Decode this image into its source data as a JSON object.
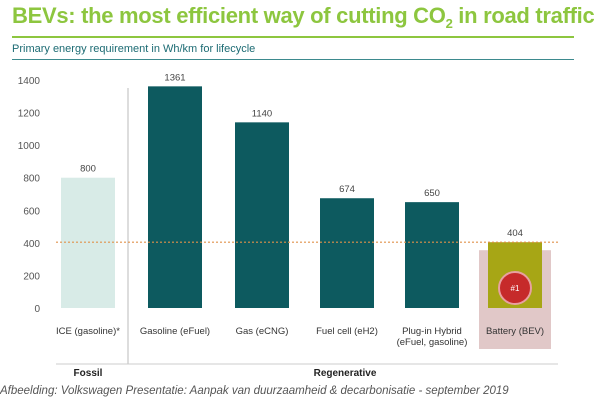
{
  "title": {
    "main": "BEVs: the most efficient way of cutting CO",
    "subscript": "2",
    "suffix": " in road traffic"
  },
  "subtitle": "Primary energy requirement in Wh/km for lifecycle",
  "caption": "Afbeelding: Volkswagen Presentatie: Aanpak van duurzaamheid & decarbonisatie - september 2019",
  "groups": [
    {
      "label": "Fossil"
    },
    {
      "label": "Regenerative"
    }
  ],
  "badge": "#1",
  "colors": {
    "title": "#8dc63f",
    "fossil_bar": "#d8ebe7",
    "regenerative_bar": "#0d5a5f",
    "bev_bar": "#a7a615",
    "bev_highlight": "#e1c8c8",
    "badge": "#c62a2a",
    "reference_line": "#e0914a"
  },
  "chart_data": {
    "type": "bar",
    "categories": [
      "ICE (gasoline)*",
      "Gasoline (eFuel)",
      "Gas (eCNG)",
      "Fuel cell (eH2)",
      "Plug-in Hybrid (eFuel, gasoline)",
      "Battery (BEV)"
    ],
    "category_label_lines": [
      [
        "ICE (gasoline)*"
      ],
      [
        "Gasoline (eFuel)"
      ],
      [
        "Gas (eCNG)"
      ],
      [
        "Fuel cell (eH2)"
      ],
      [
        "Plug-in Hybrid",
        "(eFuel, gasoline)"
      ],
      [
        "Battery (BEV)"
      ]
    ],
    "values": [
      800,
      1361,
      1140,
      674,
      650,
      404
    ],
    "value_labels": [
      "800",
      "1361",
      "1140",
      "674",
      "650",
      "404"
    ],
    "groups": [
      "Fossil",
      "Regenerative",
      "Regenerative",
      "Regenerative",
      "Regenerative",
      "Regenerative"
    ],
    "reference_line": 404,
    "ylim": [
      0,
      1400
    ],
    "yticks": [
      0,
      200,
      400,
      600,
      800,
      1000,
      1200,
      1400
    ],
    "grid": false,
    "title": "BEVs: the most efficient way of cutting CO2 in road traffic",
    "subtitle": "Primary energy requirement in Wh/km for lifecycle"
  }
}
